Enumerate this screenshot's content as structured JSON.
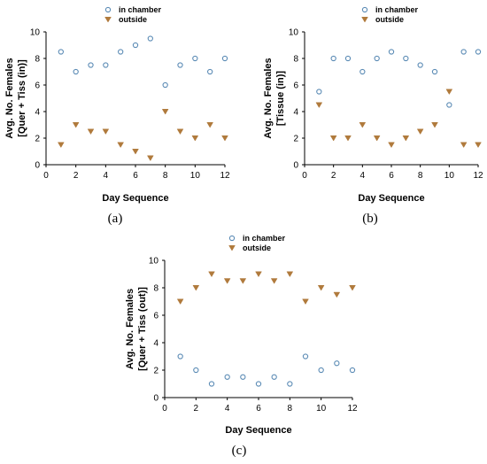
{
  "chart_data": [
    {
      "type": "scatter",
      "panel_label": "(a)",
      "xlabel": "Day Sequence",
      "ylabel_line1": "Avg. No. Females",
      "ylabel_line2": "[Quer + Tiss (in)]",
      "xlim": [
        0,
        12
      ],
      "ylim": [
        0,
        10
      ],
      "x_ticks": [
        0,
        2,
        4,
        6,
        8,
        10,
        12
      ],
      "y_ticks": [
        0,
        2,
        4,
        6,
        8,
        10
      ],
      "grid": false,
      "legend_position": "top-right",
      "x": [
        1,
        2,
        3,
        4,
        5,
        6,
        7,
        8,
        9,
        10,
        11,
        12
      ],
      "series": [
        {
          "name": "in chamber",
          "marker": "circle",
          "color": "#5b8bb5",
          "values": [
            8.5,
            7,
            7.5,
            7.5,
            8.5,
            9,
            9.5,
            6,
            7.5,
            8,
            7,
            8
          ]
        },
        {
          "name": "outside",
          "marker": "triangle-down",
          "color": "#b07a3c",
          "values": [
            1.5,
            3,
            2.5,
            2.5,
            1.5,
            1,
            0.5,
            4,
            2.5,
            2,
            3,
            2
          ]
        }
      ]
    },
    {
      "type": "scatter",
      "panel_label": "(b)",
      "xlabel": "Day Sequence",
      "ylabel_line1": "Avg. No. Females",
      "ylabel_line2": "[Tissue (in)]",
      "xlim": [
        0,
        12
      ],
      "ylim": [
        0,
        10
      ],
      "x_ticks": [
        0,
        2,
        4,
        6,
        8,
        10,
        12
      ],
      "y_ticks": [
        0,
        2,
        4,
        6,
        8,
        10
      ],
      "grid": false,
      "legend_position": "top-right",
      "x": [
        1,
        2,
        3,
        4,
        5,
        6,
        7,
        8,
        9,
        10,
        11,
        12
      ],
      "series": [
        {
          "name": "in chamber",
          "marker": "circle",
          "color": "#5b8bb5",
          "values": [
            5.5,
            8,
            8,
            7,
            8,
            8.5,
            8,
            7.5,
            7,
            4.5,
            8.5,
            8.5
          ]
        },
        {
          "name": "outside",
          "marker": "triangle-down",
          "color": "#b07a3c",
          "values": [
            4.5,
            2,
            2,
            3,
            2,
            1.5,
            2,
            2.5,
            3,
            5.5,
            1.5,
            1.5
          ]
        }
      ]
    },
    {
      "type": "scatter",
      "panel_label": "(c)",
      "xlabel": "Day Sequence",
      "ylabel_line1": "Avg. No. Females",
      "ylabel_line2": "[Quer + Tiss (out)]",
      "xlim": [
        0,
        12
      ],
      "ylim": [
        0,
        10
      ],
      "x_ticks": [
        0,
        2,
        4,
        6,
        8,
        10,
        12
      ],
      "y_ticks": [
        0,
        2,
        4,
        6,
        8,
        10
      ],
      "grid": false,
      "legend_position": "top-right",
      "x": [
        1,
        2,
        3,
        4,
        5,
        6,
        7,
        8,
        9,
        10,
        11,
        12
      ],
      "series": [
        {
          "name": "in chamber",
          "marker": "circle",
          "color": "#5b8bb5",
          "values": [
            3,
            2,
            1,
            1.5,
            1.5,
            1,
            1.5,
            1,
            3,
            2,
            2.5,
            2
          ]
        },
        {
          "name": "outside",
          "marker": "triangle-down",
          "color": "#b07a3c",
          "values": [
            7,
            8,
            9,
            8.5,
            8.5,
            9,
            8.5,
            9,
            7,
            8,
            7.5,
            8
          ]
        }
      ]
    }
  ]
}
